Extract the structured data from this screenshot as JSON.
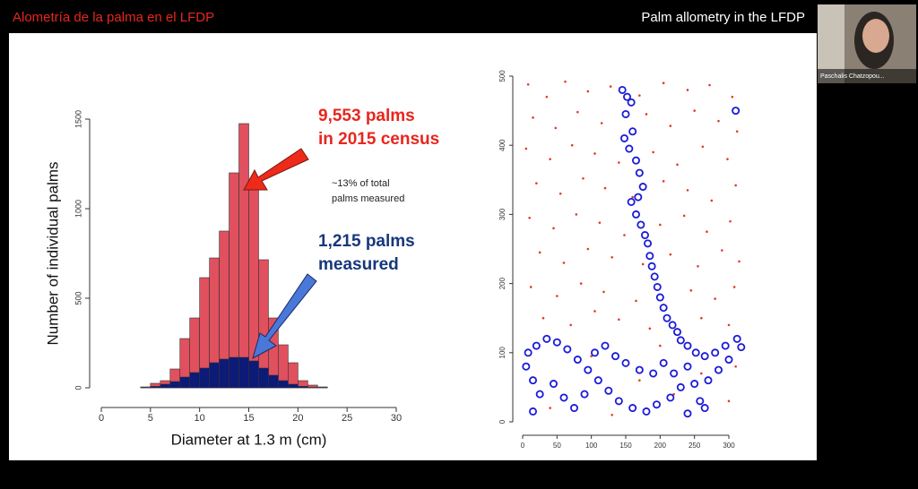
{
  "header": {
    "left_title": "Alometría de la palma en el LFDP",
    "right_title": "Palm allometry in the LFDP"
  },
  "participant": {
    "name": "Paschalis Chatzopou..."
  },
  "annotations": {
    "census_line1": "9,553 palms",
    "census_line2": "in 2015 census",
    "percent_line1": "~13% of total",
    "percent_line2": "palms measured",
    "measured_line1": "1,215 palms",
    "measured_line2": "measured"
  },
  "chart_data": [
    {
      "type": "histogram",
      "xlabel": "Diameter at 1.3 m (cm)",
      "ylabel": "Number of individual palms",
      "bins": [
        4,
        5,
        6,
        7,
        8,
        9,
        10,
        11,
        12,
        13,
        14,
        15,
        16,
        17,
        18,
        19,
        20,
        21,
        22,
        23
      ],
      "series": [
        {
          "color": "#e0505e",
          "values": [
            5,
            25,
            40,
            105,
            275,
            390,
            615,
            725,
            875,
            1200,
            1475,
            1115,
            715,
            390,
            240,
            140,
            40,
            15,
            5
          ]
        },
        {
          "color": "#0c1a78",
          "values": [
            2,
            8,
            20,
            35,
            60,
            85,
            110,
            140,
            160,
            170,
            170,
            150,
            110,
            70,
            40,
            20,
            8,
            3,
            1
          ]
        }
      ],
      "xlim": [
        0,
        30
      ],
      "ylim": [
        0,
        1500
      ],
      "xticks": [
        0,
        5,
        10,
        15,
        20,
        25,
        30
      ],
      "yticks": [
        0,
        500,
        1000,
        1500
      ]
    },
    {
      "type": "scatter",
      "xlim": [
        0,
        320
      ],
      "ylim": [
        0,
        500
      ],
      "xticks": [
        0,
        50,
        100,
        150,
        200,
        250,
        300
      ],
      "yticks": [
        0,
        100,
        200,
        300,
        400,
        500
      ],
      "series": [
        {
          "color": "#e03a2a",
          "marker": "dot",
          "x": [
            8,
            35,
            62,
            95,
            128,
            170,
            205,
            240,
            272,
            305,
            15,
            48,
            80,
            115,
            180,
            215,
            250,
            285,
            312,
            5,
            40,
            72,
            105,
            140,
            190,
            225,
            262,
            298,
            20,
            55,
            88,
            120,
            160,
            205,
            240,
            275,
            310,
            10,
            45,
            78,
            112,
            148,
            200,
            235,
            268,
            302,
            25,
            60,
            95,
            130,
            175,
            215,
            255,
            290,
            315,
            12,
            50,
            85,
            118,
            165,
            245,
            280,
            308,
            30,
            70,
            105,
            140,
            185,
            260,
            300,
            100,
            170,
            220,
            260,
            300,
            200,
            40,
            130,
            310
          ],
          "values": [
            488,
            470,
            492,
            478,
            485,
            472,
            490,
            480,
            487,
            470,
            440,
            425,
            448,
            432,
            445,
            428,
            450,
            435,
            420,
            395,
            380,
            400,
            388,
            375,
            390,
            372,
            398,
            380,
            345,
            330,
            352,
            338,
            325,
            348,
            335,
            320,
            342,
            295,
            280,
            300,
            288,
            270,
            285,
            298,
            275,
            290,
            245,
            230,
            250,
            238,
            228,
            242,
            225,
            248,
            232,
            195,
            182,
            200,
            188,
            175,
            190,
            178,
            195,
            150,
            140,
            160,
            148,
            135,
            150,
            140,
            95,
            60,
            40,
            70,
            30,
            110,
            20,
            10,
            80
          ]
        },
        {
          "color": "#1a1ad8",
          "marker": "ring",
          "x": [
            145,
            152,
            158,
            150,
            160,
            148,
            155,
            165,
            170,
            175,
            168,
            158,
            165,
            172,
            178,
            182,
            185,
            188,
            192,
            196,
            200,
            205,
            210,
            218,
            225,
            230,
            240,
            252,
            265,
            280,
            295,
            312,
            318,
            300,
            285,
            270,
            250,
            230,
            215,
            195,
            180,
            160,
            140,
            125,
            110,
            95,
            80,
            65,
            50,
            35,
            20,
            8,
            5,
            15,
            25,
            15,
            45,
            60,
            75,
            90,
            105,
            120,
            135,
            150,
            170,
            190,
            205,
            220,
            240,
            258,
            265,
            240,
            310
          ],
          "values": [
            480,
            470,
            462,
            445,
            420,
            410,
            395,
            378,
            360,
            340,
            325,
            318,
            300,
            285,
            270,
            258,
            240,
            225,
            210,
            195,
            180,
            165,
            150,
            140,
            130,
            118,
            110,
            100,
            95,
            100,
            110,
            120,
            108,
            90,
            75,
            60,
            55,
            50,
            35,
            25,
            15,
            20,
            30,
            45,
            60,
            75,
            90,
            105,
            115,
            120,
            110,
            100,
            80,
            60,
            40,
            15,
            55,
            35,
            20,
            40,
            100,
            110,
            95,
            85,
            75,
            70,
            85,
            70,
            80,
            30,
            20,
            12,
            450
          ]
        }
      ]
    }
  ]
}
